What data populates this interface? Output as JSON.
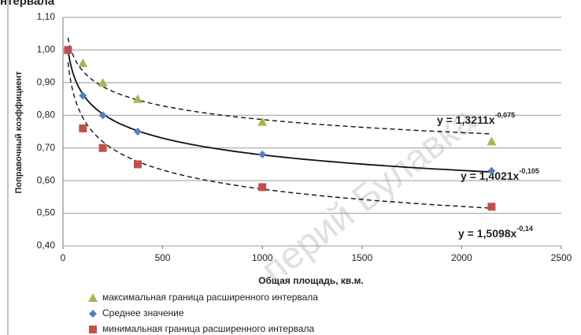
{
  "chart_data": {
    "type": "scatter",
    "title": "нтервала",
    "watermark": "перий Булавка",
    "x_label": "Общая площадь, кв.м.",
    "y_label": "Поправочный коэффициент",
    "xlim": [
      0,
      2500
    ],
    "xticks": [
      0,
      500,
      1000,
      1500,
      2000,
      2500
    ],
    "ylim": [
      0.4,
      1.1
    ],
    "yticks": [
      {
        "value": 0.4,
        "label": "0,40"
      },
      {
        "value": 0.5,
        "label": "0,50"
      },
      {
        "value": 0.6,
        "label": "0,60"
      },
      {
        "value": 0.7,
        "label": "0,70"
      },
      {
        "value": 0.8,
        "label": "0,80"
      },
      {
        "value": 0.9,
        "label": "0,90"
      },
      {
        "value": 1.0,
        "label": "1,00"
      },
      {
        "value": 1.1,
        "label": "1,10"
      }
    ],
    "grid": true,
    "series": [
      {
        "name": "максимальная граница расширенного интервала",
        "color": "#9bbb59",
        "marker": "triangle",
        "x": [
          25,
          100,
          200,
          375,
          1000,
          2150
        ],
        "values": [
          1.0,
          0.96,
          0.9,
          0.85,
          0.78,
          0.72
        ],
        "trend": {
          "a": 1.3211,
          "b": -0.075,
          "label": "y = 1,3211x",
          "exponent": "-0,075",
          "dashed": true
        }
      },
      {
        "name": "Среднее значение",
        "color": "#4f81bd",
        "marker": "diamond",
        "x": [
          25,
          100,
          200,
          375,
          1000,
          2150
        ],
        "values": [
          1.0,
          0.86,
          0.8,
          0.75,
          0.68,
          0.63
        ],
        "trend": {
          "a": 1.4021,
          "b": -0.105,
          "label": "y = 1,4021x",
          "exponent": "-0,105",
          "dashed": false
        }
      },
      {
        "name": "минимальная граница расширенного интервала",
        "color": "#c0504d",
        "marker": "square",
        "x": [
          25,
          100,
          200,
          375,
          1000,
          2150
        ],
        "values": [
          1.0,
          0.76,
          0.7,
          0.65,
          0.58,
          0.52
        ],
        "trend": {
          "a": 1.5098,
          "b": -0.14,
          "label": "y = 1,5098x",
          "exponent": "-0,14",
          "dashed": true
        }
      }
    ]
  }
}
